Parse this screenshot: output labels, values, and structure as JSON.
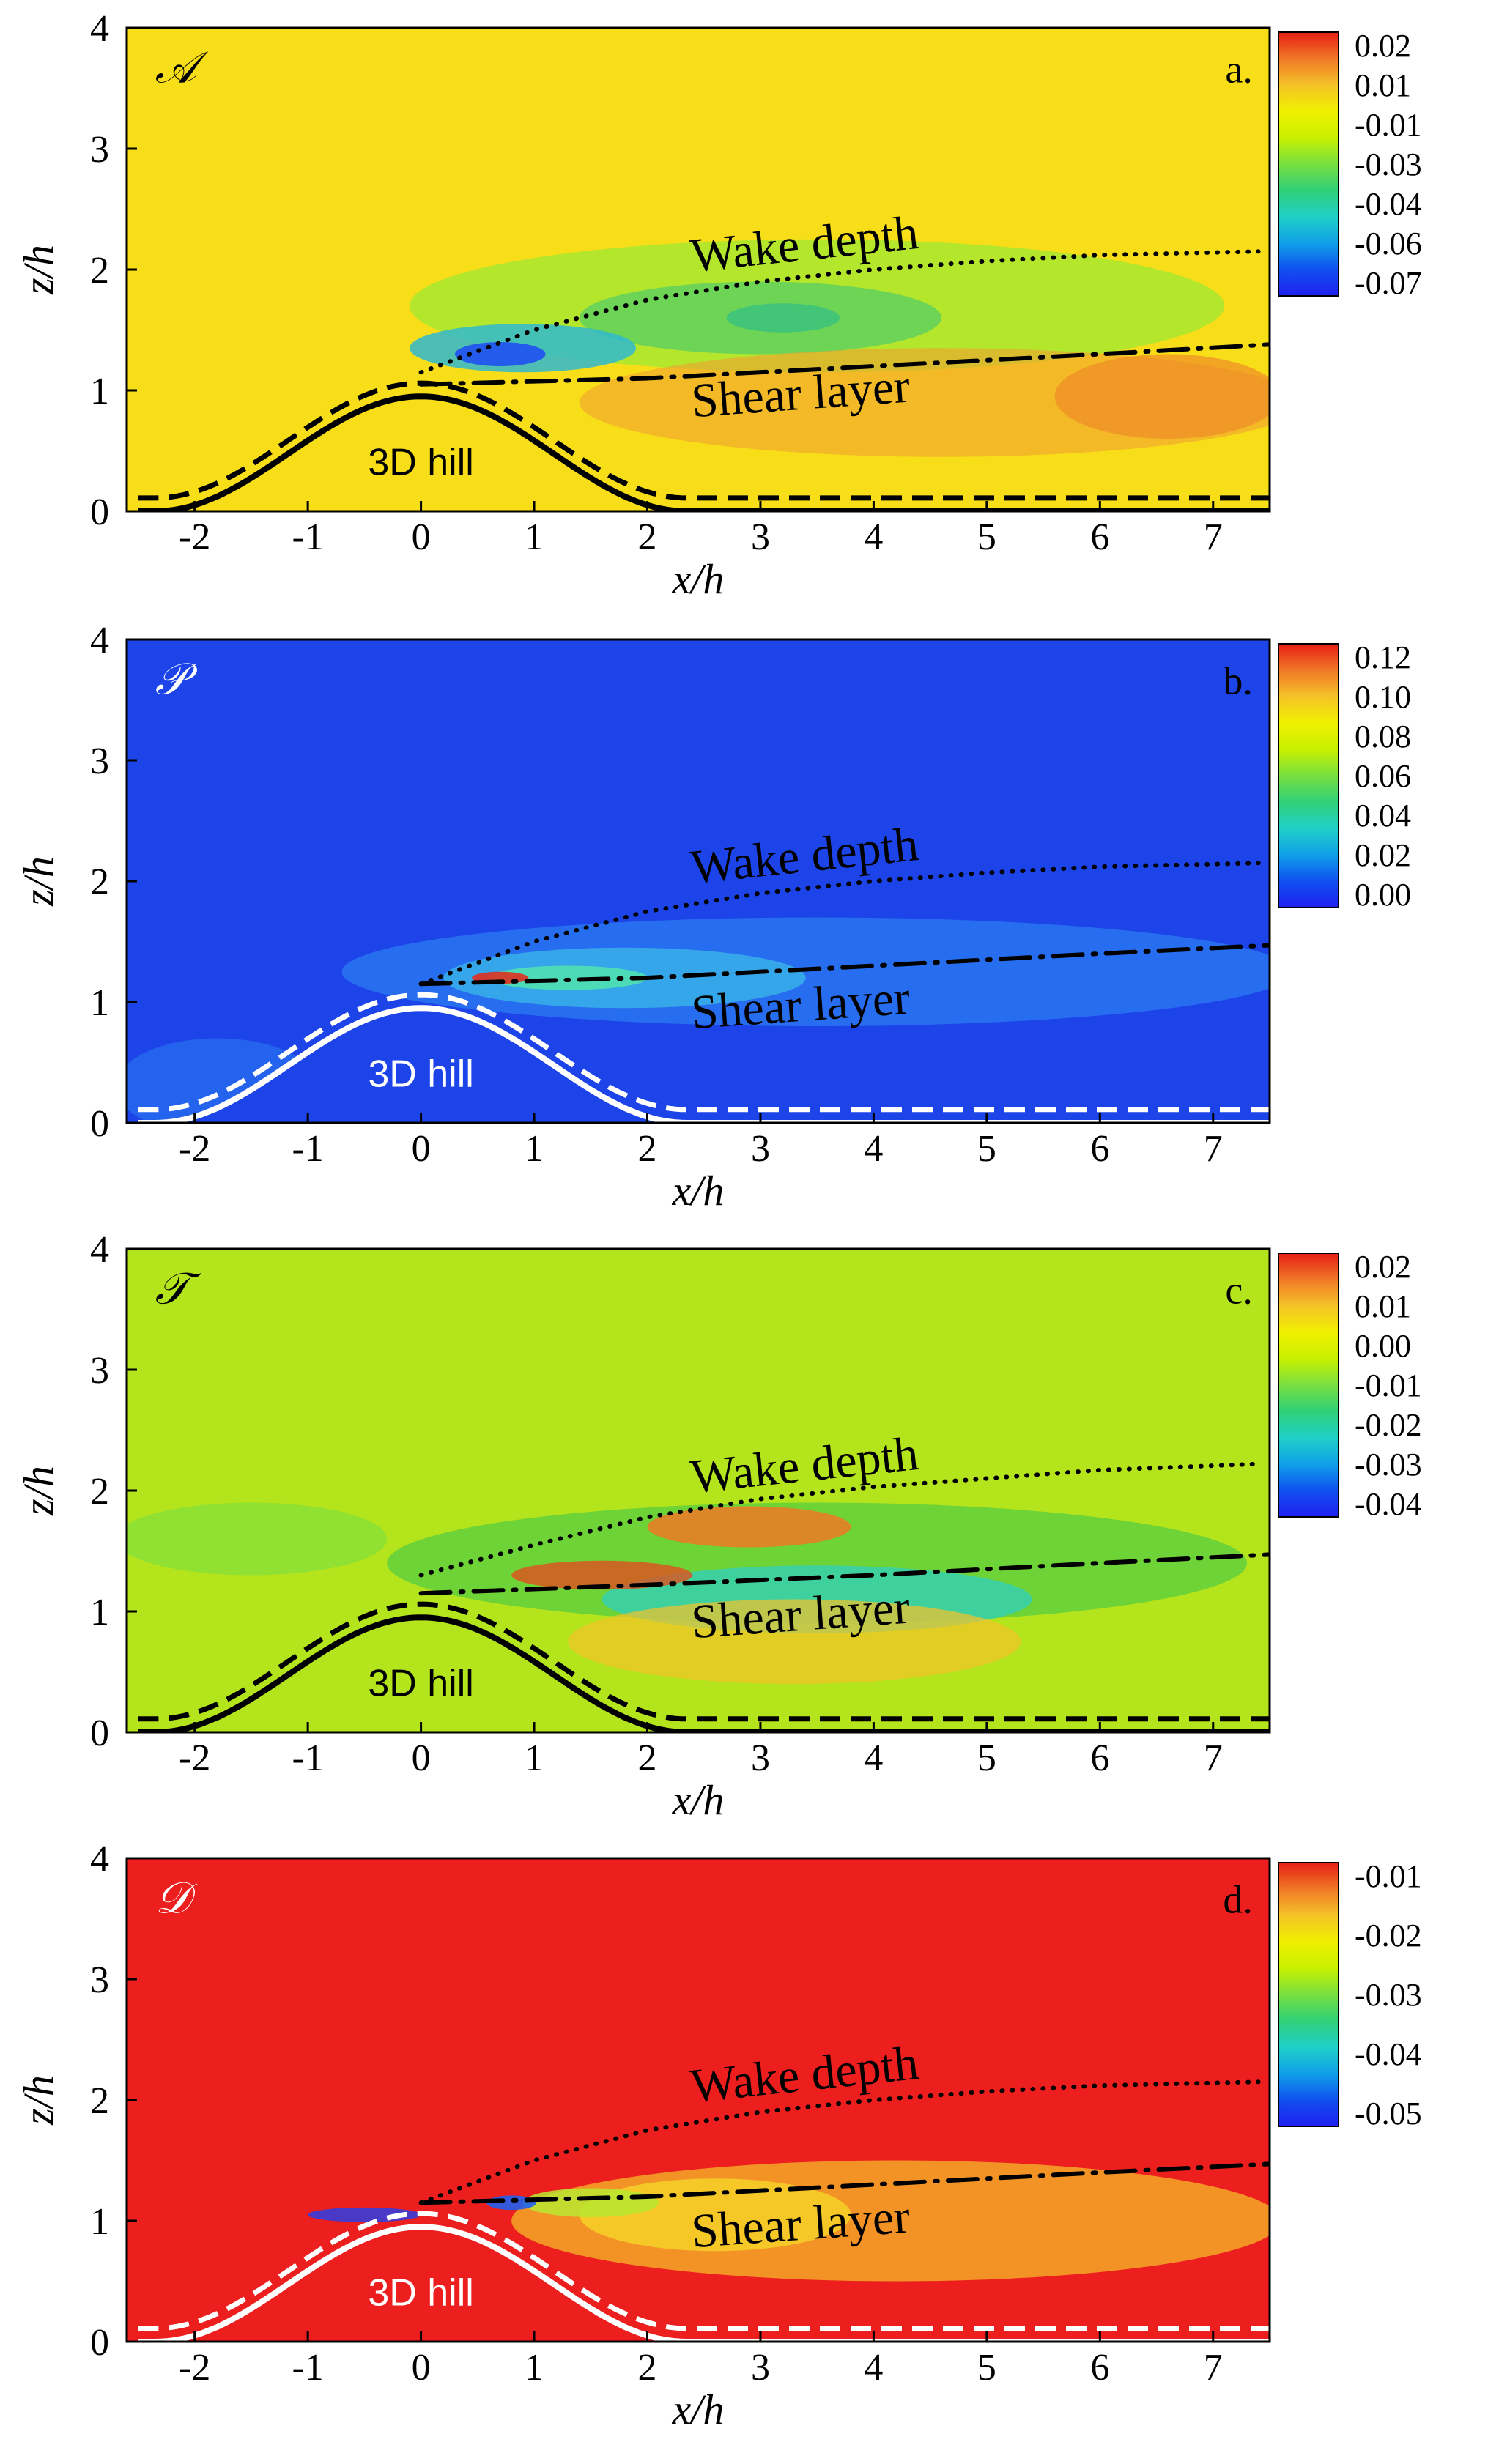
{
  "chart_data": [
    {
      "type": "heatmap",
      "panel_tag": "a.",
      "symbol": "𝒜",
      "xlabel": "x/h",
      "ylabel": "z/h",
      "xlim": [
        -2.6,
        7.5
      ],
      "ylim": [
        0,
        4
      ],
      "xticks": [
        -2,
        -1,
        0,
        1,
        2,
        3,
        4,
        5,
        6,
        7
      ],
      "yticks": [
        0,
        1,
        2,
        3,
        4
      ],
      "colorbar": {
        "labels": [
          "0.02",
          "0.01",
          "-0.01",
          "-0.03",
          "-0.04",
          "-0.06",
          "-0.07"
        ],
        "stops": [
          "#e61e14",
          "#f07828",
          "#f5c328",
          "#f0f000",
          "#c8f000",
          "#78e040",
          "#30d078",
          "#20d0c8",
          "#10a0e8",
          "#1050f0",
          "#2020f0"
        ]
      },
      "background": "#f8de18",
      "hill_label": "3D hill",
      "annotations": [
        "Wake depth",
        "Shear layer"
      ],
      "hill_color": "#000000",
      "wake_depth_curve": {
        "x": [
          0,
          1,
          2,
          3,
          4,
          5,
          6,
          7.4
        ],
        "y": [
          1.15,
          1.5,
          1.75,
          1.9,
          2.0,
          2.07,
          2.12,
          2.15
        ]
      },
      "shear_layer_curve": {
        "x": [
          0,
          2,
          4,
          6,
          7.5
        ],
        "y": [
          1.05,
          1.1,
          1.2,
          1.3,
          1.38
        ]
      }
    },
    {
      "type": "heatmap",
      "panel_tag": "b.",
      "symbol": "𝒫",
      "xlabel": "x/h",
      "ylabel": "z/h",
      "xlim": [
        -2.6,
        7.5
      ],
      "ylim": [
        0,
        4
      ],
      "xticks": [
        -2,
        -1,
        0,
        1,
        2,
        3,
        4,
        5,
        6,
        7
      ],
      "yticks": [
        0,
        1,
        2,
        3,
        4
      ],
      "colorbar": {
        "labels": [
          "0.12",
          "0.10",
          "0.08",
          "0.06",
          "0.04",
          "0.02",
          "0.00"
        ],
        "stops": [
          "#e61e14",
          "#f07828",
          "#f5c328",
          "#f0f000",
          "#c8f000",
          "#78e040",
          "#30d078",
          "#20d0c8",
          "#10a0e8",
          "#1050f0",
          "#2020f0"
        ]
      },
      "background": "#1c44e8",
      "hill_label": "3D hill",
      "annotations": [
        "Wake depth",
        "Shear layer"
      ],
      "hill_color": "#ffffff",
      "wake_depth_curve": {
        "x": [
          0,
          1,
          2,
          3,
          4,
          5,
          6,
          7.4
        ],
        "y": [
          1.15,
          1.5,
          1.75,
          1.9,
          2.0,
          2.07,
          2.12,
          2.15
        ]
      },
      "shear_layer_curve": {
        "x": [
          0,
          2,
          4,
          6,
          7.5
        ],
        "y": [
          1.15,
          1.2,
          1.3,
          1.4,
          1.47
        ]
      }
    },
    {
      "type": "heatmap",
      "panel_tag": "c.",
      "symbol": "𝒯",
      "xlabel": "x/h",
      "ylabel": "z/h",
      "xlim": [
        -2.6,
        7.5
      ],
      "ylim": [
        0,
        4
      ],
      "xticks": [
        -2,
        -1,
        0,
        1,
        2,
        3,
        4,
        5,
        6,
        7
      ],
      "yticks": [
        0,
        1,
        2,
        3,
        4
      ],
      "colorbar": {
        "labels": [
          "0.02",
          "0.01",
          "0.00",
          "-0.01",
          "-0.02",
          "-0.03",
          "-0.04"
        ],
        "stops": [
          "#e61e14",
          "#f07828",
          "#f5c328",
          "#f0f000",
          "#c8f000",
          "#78e040",
          "#30d078",
          "#20d0c8",
          "#10a0e8",
          "#1050f0",
          "#2020f0"
        ]
      },
      "background": "#b4e41c",
      "hill_label": "3D hill",
      "annotations": [
        "Wake depth",
        "Shear layer"
      ],
      "hill_color": "#000000",
      "wake_depth_curve": {
        "x": [
          0,
          1,
          2,
          3,
          4,
          5,
          6,
          7.4
        ],
        "y": [
          1.3,
          1.55,
          1.78,
          1.93,
          2.03,
          2.1,
          2.17,
          2.22
        ]
      },
      "shear_layer_curve": {
        "x": [
          0,
          2,
          4,
          6,
          7.5
        ],
        "y": [
          1.15,
          1.22,
          1.3,
          1.4,
          1.47
        ]
      }
    },
    {
      "type": "heatmap",
      "panel_tag": "d.",
      "symbol": "𝒟",
      "xlabel": "x/h",
      "ylabel": "z/h",
      "xlim": [
        -2.6,
        7.5
      ],
      "ylim": [
        0,
        4
      ],
      "xticks": [
        -2,
        -1,
        0,
        1,
        2,
        3,
        4,
        5,
        6,
        7
      ],
      "yticks": [
        0,
        1,
        2,
        3,
        4
      ],
      "colorbar": {
        "labels": [
          "-0.01",
          "-0.02",
          "-0.03",
          "-0.04",
          "-0.05"
        ],
        "stops": [
          "#e61e14",
          "#f07828",
          "#f5c328",
          "#f0f000",
          "#c8f000",
          "#78e040",
          "#30d078",
          "#20d0c8",
          "#10a0e8",
          "#1050f0",
          "#2020f0"
        ]
      },
      "background": "#ec1e1e",
      "hill_label": "3D hill",
      "annotations": [
        "Wake depth",
        "Shear layer"
      ],
      "hill_color": "#ffffff",
      "wake_depth_curve": {
        "x": [
          0,
          1,
          2,
          3,
          4,
          5,
          6,
          7.4
        ],
        "y": [
          1.15,
          1.5,
          1.75,
          1.9,
          2.0,
          2.07,
          2.12,
          2.15
        ]
      },
      "shear_layer_curve": {
        "x": [
          0,
          2,
          4,
          6,
          7.5
        ],
        "y": [
          1.15,
          1.2,
          1.3,
          1.4,
          1.47
        ]
      }
    }
  ]
}
